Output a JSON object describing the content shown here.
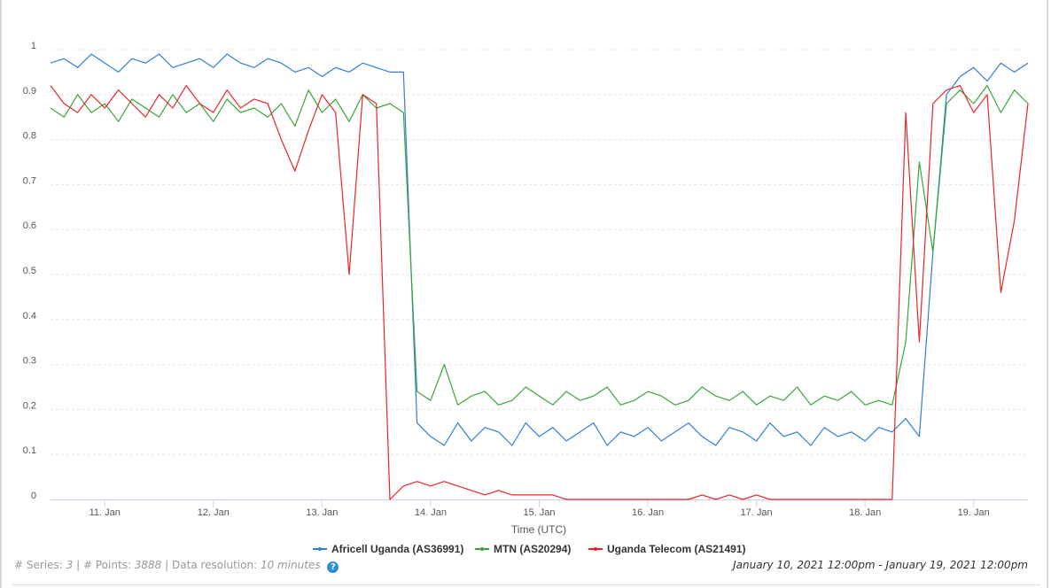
{
  "chart_data": {
    "type": "line",
    "title": "",
    "xlabel": "Time (UTC)",
    "ylabel": "",
    "x_start": "2021-01-10 12:00",
    "x_end": "2021-01-19 12:00",
    "x_tick_labels": [
      "11. Jan",
      "12. Jan",
      "13. Jan",
      "14. Jan",
      "15. Jan",
      "16. Jan",
      "17. Jan",
      "18. Jan",
      "19. Jan"
    ],
    "y_tick_labels": [
      "0",
      "0.1",
      "0.2",
      "0.3",
      "0.4",
      "0.5",
      "0.6",
      "0.7",
      "0.8",
      "0.9",
      "1"
    ],
    "ylim": [
      0,
      1
    ],
    "grid": true,
    "legend_position": "bottom",
    "series": [
      {
        "name": "Africell Uganda (AS36991)",
        "color": "#2f7ed8",
        "values": [
          0.97,
          0.98,
          0.96,
          0.99,
          0.97,
          0.95,
          0.98,
          0.97,
          0.99,
          0.96,
          0.97,
          0.98,
          0.96,
          0.99,
          0.97,
          0.96,
          0.98,
          0.97,
          0.95,
          0.96,
          0.94,
          0.96,
          0.95,
          0.97,
          0.96,
          0.95,
          0.95,
          0.17,
          0.14,
          0.12,
          0.17,
          0.13,
          0.16,
          0.15,
          0.12,
          0.17,
          0.14,
          0.16,
          0.13,
          0.15,
          0.17,
          0.12,
          0.15,
          0.14,
          0.16,
          0.13,
          0.15,
          0.17,
          0.14,
          0.12,
          0.16,
          0.15,
          0.13,
          0.17,
          0.14,
          0.15,
          0.12,
          0.16,
          0.14,
          0.15,
          0.13,
          0.16,
          0.15,
          0.18,
          0.14,
          0.55,
          0.9,
          0.94,
          0.96,
          0.93,
          0.97,
          0.95,
          0.97
        ]
      },
      {
        "name": "MTN (AS20294)",
        "color": "#3aa53a",
        "values": [
          0.87,
          0.85,
          0.9,
          0.86,
          0.88,
          0.84,
          0.89,
          0.87,
          0.85,
          0.9,
          0.86,
          0.88,
          0.84,
          0.89,
          0.86,
          0.87,
          0.85,
          0.88,
          0.83,
          0.91,
          0.86,
          0.89,
          0.84,
          0.9,
          0.87,
          0.88,
          0.86,
          0.24,
          0.22,
          0.3,
          0.21,
          0.23,
          0.24,
          0.21,
          0.22,
          0.25,
          0.23,
          0.21,
          0.24,
          0.22,
          0.23,
          0.25,
          0.21,
          0.22,
          0.24,
          0.23,
          0.21,
          0.22,
          0.25,
          0.23,
          0.22,
          0.24,
          0.21,
          0.23,
          0.22,
          0.25,
          0.21,
          0.23,
          0.22,
          0.24,
          0.21,
          0.22,
          0.21,
          0.35,
          0.75,
          0.55,
          0.88,
          0.91,
          0.88,
          0.92,
          0.86,
          0.91,
          0.88
        ]
      },
      {
        "name": "Uganda Telecom (AS21491)",
        "color": "#e8262a",
        "values": [
          0.92,
          0.88,
          0.86,
          0.9,
          0.87,
          0.91,
          0.88,
          0.85,
          0.9,
          0.87,
          0.92,
          0.88,
          0.86,
          0.91,
          0.87,
          0.89,
          0.88,
          0.8,
          0.73,
          0.82,
          0.9,
          0.86,
          0.5,
          0.9,
          0.88,
          0.0,
          0.03,
          0.04,
          0.03,
          0.04,
          0.03,
          0.02,
          0.01,
          0.02,
          0.01,
          0.01,
          0.01,
          0.01,
          0,
          0,
          0,
          0,
          0,
          0,
          0,
          0,
          0,
          0,
          0.01,
          0,
          0.01,
          0,
          0.01,
          0,
          0,
          0,
          0,
          0,
          0,
          0,
          0,
          0,
          0,
          0.86,
          0.35,
          0.88,
          0.91,
          0.92,
          0.86,
          0.9,
          0.46,
          0.62,
          0.88
        ]
      }
    ]
  },
  "footer": {
    "series_label": "# Series:",
    "series_count": "3",
    "points_label": "| # Points:",
    "points_count": "3888",
    "resolution_label": "| Data resolution:",
    "resolution_value": "10 minutes",
    "help_icon": "question-circle-icon",
    "date_range": "January 10, 2021 12:00pm - January 19, 2021 12:00pm"
  }
}
